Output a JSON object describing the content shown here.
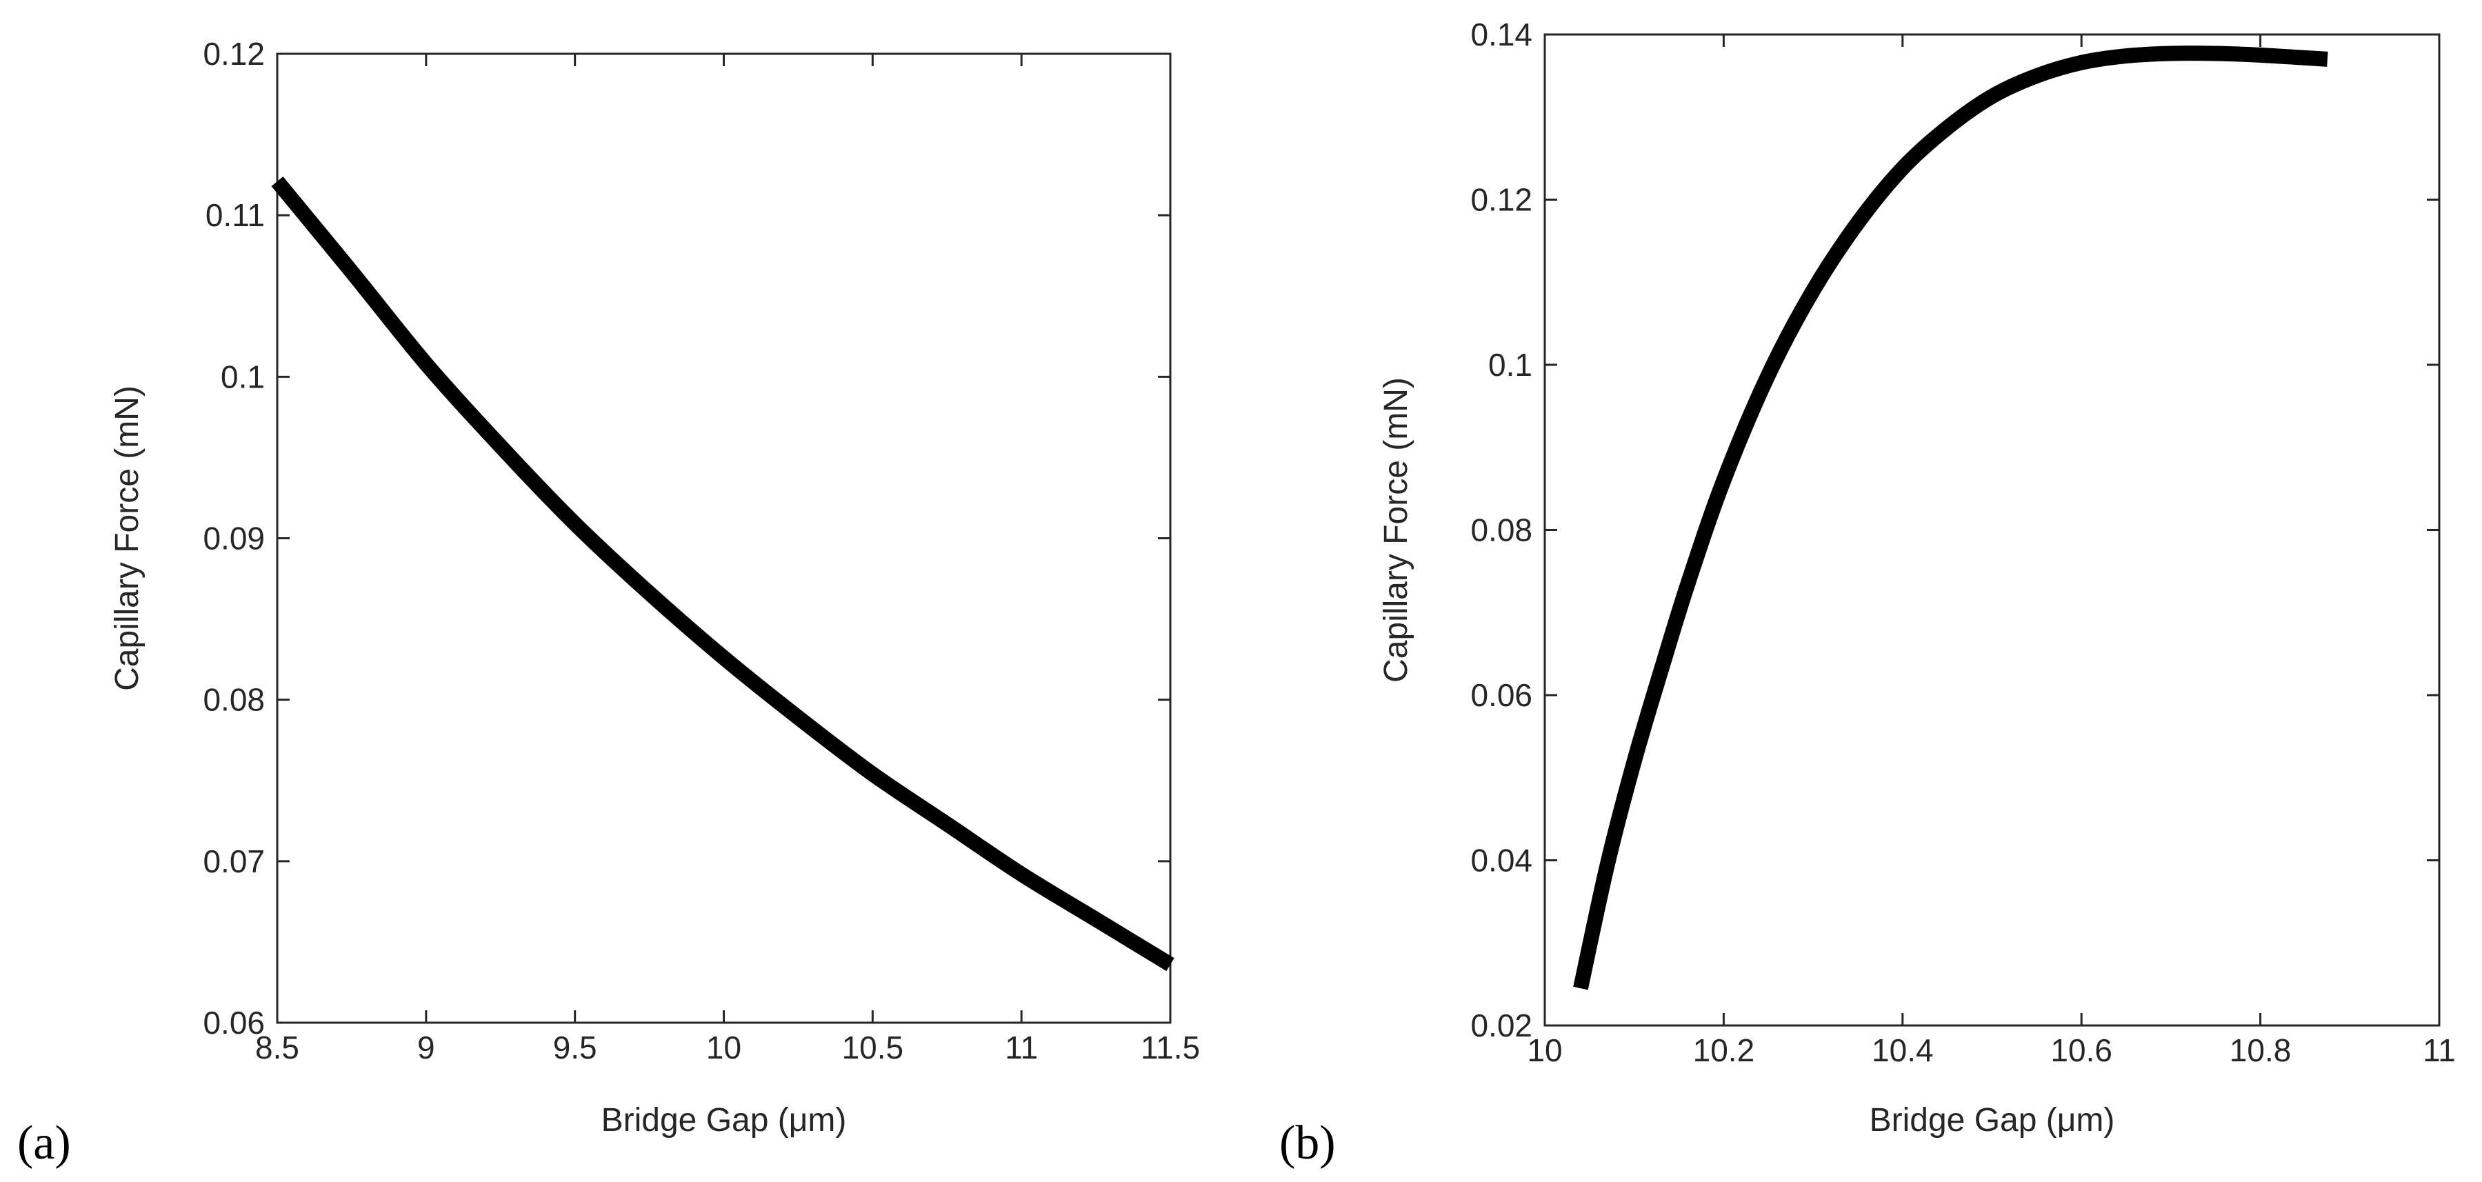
{
  "chart_data": [
    {
      "type": "line",
      "panel_label": "(a)",
      "title": "",
      "xlabel": "Bridge Gap (μm)",
      "ylabel": "Capillary Force (mN)",
      "xlim": [
        8.5,
        11.5
      ],
      "ylim": [
        0.06,
        0.12
      ],
      "xticks": [
        8.5,
        9,
        9.5,
        10,
        10.5,
        11,
        11.5
      ],
      "xtick_labels": [
        "8.5",
        "9",
        "9.5",
        "10",
        "10.5",
        "11",
        "11.5"
      ],
      "yticks": [
        0.06,
        0.07,
        0.08,
        0.09,
        0.1,
        0.11,
        0.12
      ],
      "ytick_labels": [
        "0.06",
        "0.07",
        "0.08",
        "0.09",
        "0.1",
        "0.11",
        "0.12"
      ],
      "grid": false,
      "line_color": "#000000",
      "x": [
        8.5,
        8.75,
        9.0,
        9.25,
        9.5,
        9.75,
        10.0,
        10.25,
        10.5,
        10.75,
        11.0,
        11.25,
        11.5
      ],
      "y": [
        0.1121,
        0.1065,
        0.1008,
        0.0957,
        0.0909,
        0.0866,
        0.0826,
        0.0789,
        0.0754,
        0.0723,
        0.0692,
        0.0664,
        0.0636
      ]
    },
    {
      "type": "line",
      "panel_label": "(b)",
      "title": "",
      "xlabel": "Bridge Gap (μm)",
      "ylabel": "Capillary Force (mN)",
      "xlim": [
        10.0,
        11.0
      ],
      "ylim": [
        0.02,
        0.14
      ],
      "xticks": [
        10,
        10.2,
        10.4,
        10.6,
        10.8,
        11
      ],
      "xtick_labels": [
        "10",
        "10.2",
        "10.4",
        "10.6",
        "10.8",
        "11"
      ],
      "yticks": [
        0.02,
        0.04,
        0.06,
        0.08,
        0.1,
        0.12,
        0.14
      ],
      "ytick_labels": [
        "0.02",
        "0.04",
        "0.06",
        "0.08",
        "0.1",
        "0.12",
        "0.14"
      ],
      "grid": false,
      "line_color": "#000000",
      "x": [
        10.04,
        10.07,
        10.1,
        10.13,
        10.16,
        10.2,
        10.25,
        10.3,
        10.35,
        10.4,
        10.45,
        10.5,
        10.55,
        10.6,
        10.65,
        10.7,
        10.75,
        10.8,
        10.875
      ],
      "y": [
        0.0245,
        0.0395,
        0.052,
        0.063,
        0.0735,
        0.086,
        0.0988,
        0.109,
        0.1172,
        0.1238,
        0.1287,
        0.1325,
        0.135,
        0.1366,
        0.1374,
        0.1377,
        0.1377,
        0.1375,
        0.137
      ]
    }
  ]
}
